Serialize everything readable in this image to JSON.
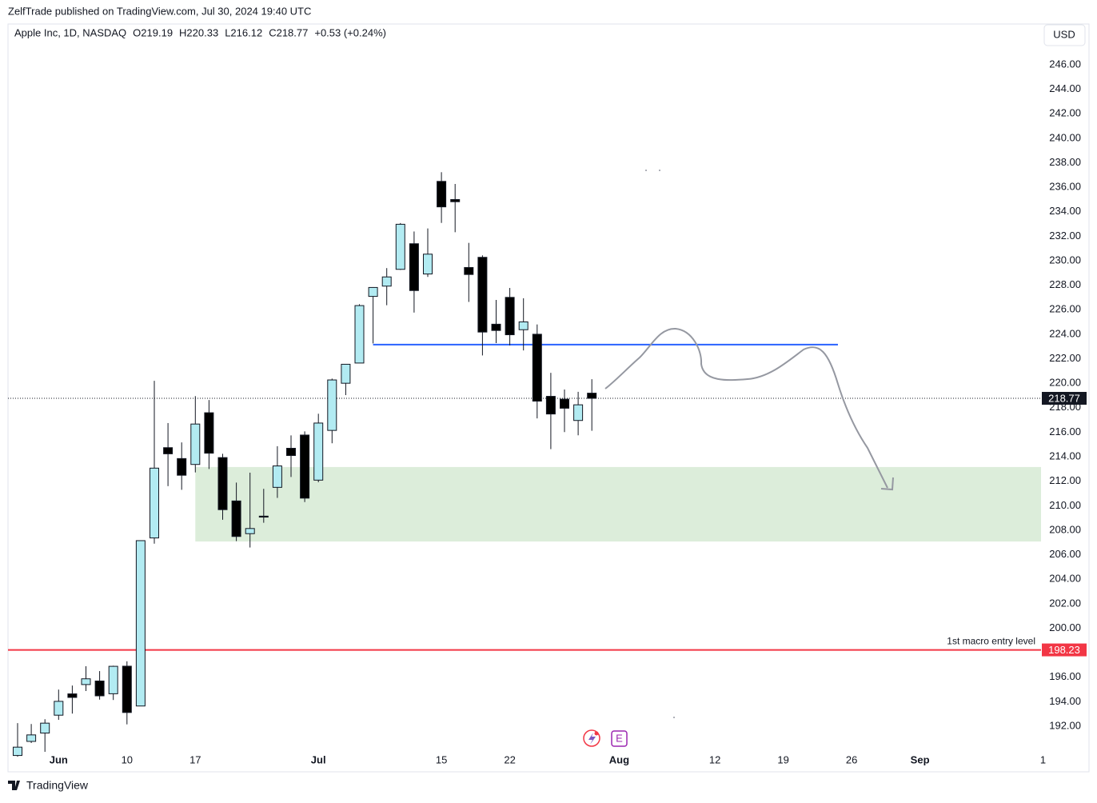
{
  "header": {
    "published": "ZelfTrade published on TradingView.com, Jul 30, 2024 19:40 UTC",
    "symbol": "Apple Inc, 1D, NASDAQ",
    "ohlc": [
      "O219.19",
      "H220.33",
      "L216.12",
      "C218.77",
      "+0.53 (+0.24%)"
    ],
    "currency": "USD"
  },
  "footer": {
    "brand": "TradingView"
  },
  "icons": {
    "events": "E"
  },
  "chart_data": {
    "type": "candlestick",
    "x": [
      "2024-05-29",
      "2024-05-30",
      "2024-05-31",
      "2024-06-03",
      "2024-06-04",
      "2024-06-05",
      "2024-06-06",
      "2024-06-07",
      "2024-06-10",
      "2024-06-11",
      "2024-06-12",
      "2024-06-13",
      "2024-06-14",
      "2024-06-17",
      "2024-06-18",
      "2024-06-20",
      "2024-06-21",
      "2024-06-24",
      "2024-06-25",
      "2024-06-26",
      "2024-06-27",
      "2024-06-28",
      "2024-07-01",
      "2024-07-02",
      "2024-07-03",
      "2024-07-05",
      "2024-07-08",
      "2024-07-09",
      "2024-07-10",
      "2024-07-11",
      "2024-07-12",
      "2024-07-15",
      "2024-07-16",
      "2024-07-17",
      "2024-07-18",
      "2024-07-19",
      "2024-07-22",
      "2024-07-23",
      "2024-07-24",
      "2024-07-25",
      "2024-07-26",
      "2024-07-29",
      "2024-07-30"
    ],
    "open": [
      189.61,
      190.76,
      191.44,
      192.9,
      194.64,
      195.4,
      195.69,
      194.65,
      196.9,
      193.65,
      207.37,
      214.74,
      213.85,
      213.37,
      217.59,
      213.93,
      210.39,
      207.72,
      209.15,
      211.5,
      214.69,
      215.77,
      212.09,
      216.15,
      220.0,
      221.65,
      227.09,
      227.93,
      229.3,
      231.39,
      228.92,
      236.48,
      235.0,
      229.45,
      230.28,
      224.82,
      227.01,
      224.37,
      224.0,
      218.93,
      218.7,
      216.96,
      219.19
    ],
    "high": [
      192.25,
      192.18,
      192.57,
      194.99,
      195.32,
      196.9,
      196.5,
      196.94,
      197.3,
      207.16,
      220.2,
      216.75,
      215.17,
      218.95,
      218.63,
      214.24,
      211.89,
      212.7,
      211.38,
      214.86,
      215.74,
      216.07,
      217.51,
      220.38,
      221.55,
      226.45,
      227.85,
      229.4,
      233.08,
      232.39,
      232.64,
      237.23,
      236.27,
      231.46,
      230.44,
      226.8,
      227.78,
      226.94,
      224.8,
      220.85,
      219.49,
      219.3,
      220.33
    ],
    "low": [
      189.51,
      190.63,
      189.91,
      192.52,
      193.03,
      194.87,
      194.17,
      194.14,
      192.15,
      193.63,
      206.9,
      211.6,
      211.3,
      212.72,
      213.0,
      208.85,
      207.11,
      206.59,
      208.61,
      210.64,
      212.35,
      210.3,
      211.92,
      215.1,
      219.03,
      221.65,
      223.25,
      226.37,
      229.25,
      225.77,
      228.68,
      233.09,
      232.33,
      226.64,
      222.27,
      223.28,
      223.09,
      222.68,
      217.13,
      214.62,
      216.01,
      215.75,
      216.12
    ],
    "close": [
      190.29,
      191.29,
      192.25,
      194.03,
      194.35,
      195.87,
      194.48,
      196.89,
      193.12,
      207.15,
      213.07,
      214.24,
      212.49,
      216.67,
      214.29,
      209.68,
      207.49,
      208.14,
      209.07,
      213.25,
      214.1,
      210.62,
      216.75,
      220.27,
      221.55,
      226.34,
      227.82,
      228.68,
      232.98,
      227.57,
      230.54,
      234.4,
      234.82,
      228.88,
      224.18,
      224.31,
      223.96,
      225.01,
      218.54,
      217.49,
      217.96,
      218.24,
      218.77
    ],
    "up_color": "#b2ebf2",
    "down_color": "#000000",
    "ylim": [
      190.04,
      249.33
    ],
    "yticks": [
      {
        "value": 192,
        "label": "192.00"
      },
      {
        "value": 194,
        "label": "194.00"
      },
      {
        "value": 196,
        "label": "196.00"
      },
      {
        "value": 200,
        "label": "200.00"
      },
      {
        "value": 202,
        "label": "202.00"
      },
      {
        "value": 204,
        "label": "204.00"
      },
      {
        "value": 206,
        "label": "206.00"
      },
      {
        "value": 208,
        "label": "208.00"
      },
      {
        "value": 210,
        "label": "210.00"
      },
      {
        "value": 212,
        "label": "212.00"
      },
      {
        "value": 214,
        "label": "214.00"
      },
      {
        "value": 216,
        "label": "216.00"
      },
      {
        "value": 218,
        "label": "218.00"
      },
      {
        "value": 220,
        "label": "220.00"
      },
      {
        "value": 222,
        "label": "222.00"
      },
      {
        "value": 224,
        "label": "224.00"
      },
      {
        "value": 226,
        "label": "226.00"
      },
      {
        "value": 228,
        "label": "228.00"
      },
      {
        "value": 230,
        "label": "230.00"
      },
      {
        "value": 232,
        "label": "232.00"
      },
      {
        "value": 234,
        "label": "234.00"
      },
      {
        "value": 236,
        "label": "236.00"
      },
      {
        "value": 238,
        "label": "238.00"
      },
      {
        "value": 240,
        "label": "240.00"
      },
      {
        "value": 242,
        "label": "242.00"
      },
      {
        "value": 244,
        "label": "244.00"
      },
      {
        "value": 246,
        "label": "246.00"
      }
    ],
    "xticks": [
      {
        "value": "2024-06-03",
        "label": "Jun"
      },
      {
        "value": "2024-06-10",
        "label": "10"
      },
      {
        "value": "2024-06-17",
        "label": "17"
      },
      {
        "value": "2024-07-01",
        "label": "Jul"
      },
      {
        "value": "2024-07-15",
        "label": "15"
      },
      {
        "value": "2024-07-22",
        "label": "22"
      },
      {
        "value": "2024-08-01",
        "label": "Aug"
      },
      {
        "value": "2024-08-12",
        "label": "12"
      },
      {
        "value": "2024-08-19",
        "label": "19"
      },
      {
        "value": "2024-08-26",
        "label": "26"
      },
      {
        "value": "2024-09-02",
        "label": "Sep"
      },
      {
        "value": "2024-09-13",
        "label": "1"
      }
    ],
    "last_price": 218.77,
    "levels": [
      {
        "value": 198.23,
        "label": "1st macro entry level",
        "color": "#f23645"
      },
      {
        "value": 223.15,
        "start": "2024-07-08",
        "end": "2024-08-23",
        "color": "#2962ff"
      }
    ],
    "zones": [
      {
        "top": 213.16,
        "bottom": 207.08,
        "start": "2024-06-17",
        "color": "#dcedda"
      }
    ]
  }
}
